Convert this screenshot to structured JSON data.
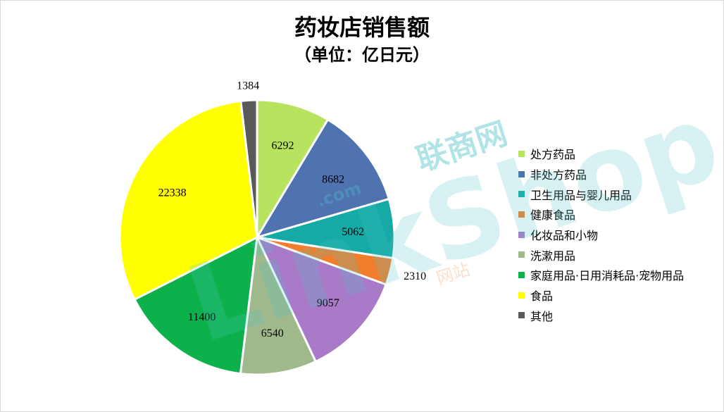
{
  "chart_data": {
    "type": "pie",
    "title": "药妆店销售额",
    "subtitle": "（单位：亿日元）",
    "legend_position": "right",
    "slices": [
      {
        "name": "处方药品",
        "value": 6292,
        "color": "#b8e35e",
        "label": "6292"
      },
      {
        "name": "非处方药品",
        "value": 8682,
        "color": "#4f72b0",
        "label": "8682"
      },
      {
        "name": "卫生用品与婴儿用品",
        "value": 5062,
        "color": "#15aaa5",
        "label": "5062"
      },
      {
        "name": "健康食品",
        "value": 2310,
        "color": "#f07e2d",
        "label": "2310"
      },
      {
        "name": "化妆品和小物",
        "value": 9057,
        "color": "#a87ac8",
        "label": "9057"
      },
      {
        "name": "洗漱用品",
        "value": 6540,
        "color": "#9fb98c",
        "label": "6540"
      },
      {
        "name": "家庭用品·日用消耗品·宠物用品",
        "value": 11400,
        "color": "#0db14b",
        "label": "11400"
      },
      {
        "name": "食品",
        "value": 22338,
        "color": "#ffff00",
        "label": "22338"
      },
      {
        "name": "其他",
        "value": 1384,
        "color": "#595959",
        "label": "1384"
      }
    ]
  },
  "watermark": {
    "brand_cn": "联商网",
    "site_cn": "网站",
    "latin": "LinkShop",
    "dotcom": ".com"
  }
}
